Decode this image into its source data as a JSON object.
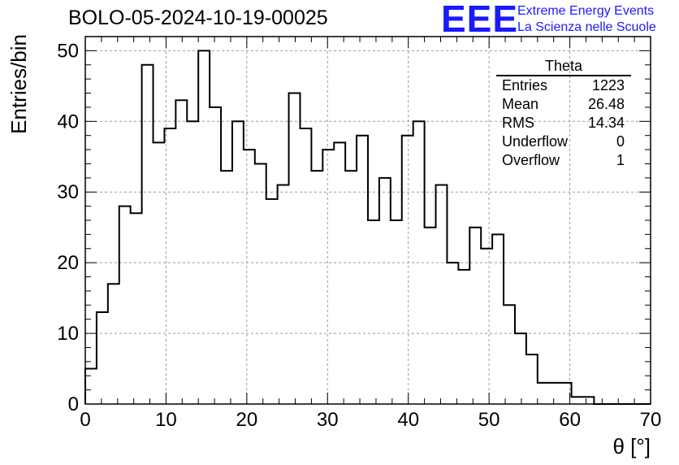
{
  "header": {
    "title": "BOLO-05-2024-10-19-00025",
    "logo": "EEE",
    "org_line1": "Extreme Energy Events",
    "org_line2": "La Scienza nelle Scuole"
  },
  "stats": {
    "name": "Theta",
    "rows": [
      {
        "label": "Entries",
        "value": "1223"
      },
      {
        "label": "Mean",
        "value": "26.48"
      },
      {
        "label": "RMS",
        "value": "14.34"
      },
      {
        "label": "Underflow",
        "value": "0"
      },
      {
        "label": "Overflow",
        "value": "1"
      }
    ]
  },
  "colors": {
    "line": "#000000",
    "grid": "#999999",
    "logo": "#1a1aff"
  },
  "chart_data": {
    "type": "histogram",
    "title": "BOLO-05-2024-10-19-00025",
    "xlabel": "θ [°]",
    "ylabel": "Entries/bin",
    "xlim": [
      0,
      70
    ],
    "ylim": [
      0,
      52
    ],
    "grid": true,
    "bin_start": 0,
    "bin_width": 1.4,
    "values": [
      5,
      13,
      17,
      28,
      27,
      48,
      37,
      39,
      43,
      40,
      50,
      42,
      33,
      40,
      36,
      34,
      29,
      31,
      44,
      39,
      33,
      36,
      37,
      33,
      38,
      26,
      32,
      26,
      38,
      40,
      25,
      31,
      20,
      19,
      25,
      22,
      24,
      14,
      10,
      7,
      3,
      3,
      3,
      1,
      1,
      0,
      0,
      0,
      0,
      0
    ],
    "x_ticks": [
      "0",
      "10",
      "20",
      "30",
      "40",
      "50",
      "60",
      "70"
    ],
    "y_ticks": [
      "0",
      "10",
      "20",
      "30",
      "40",
      "50"
    ]
  }
}
